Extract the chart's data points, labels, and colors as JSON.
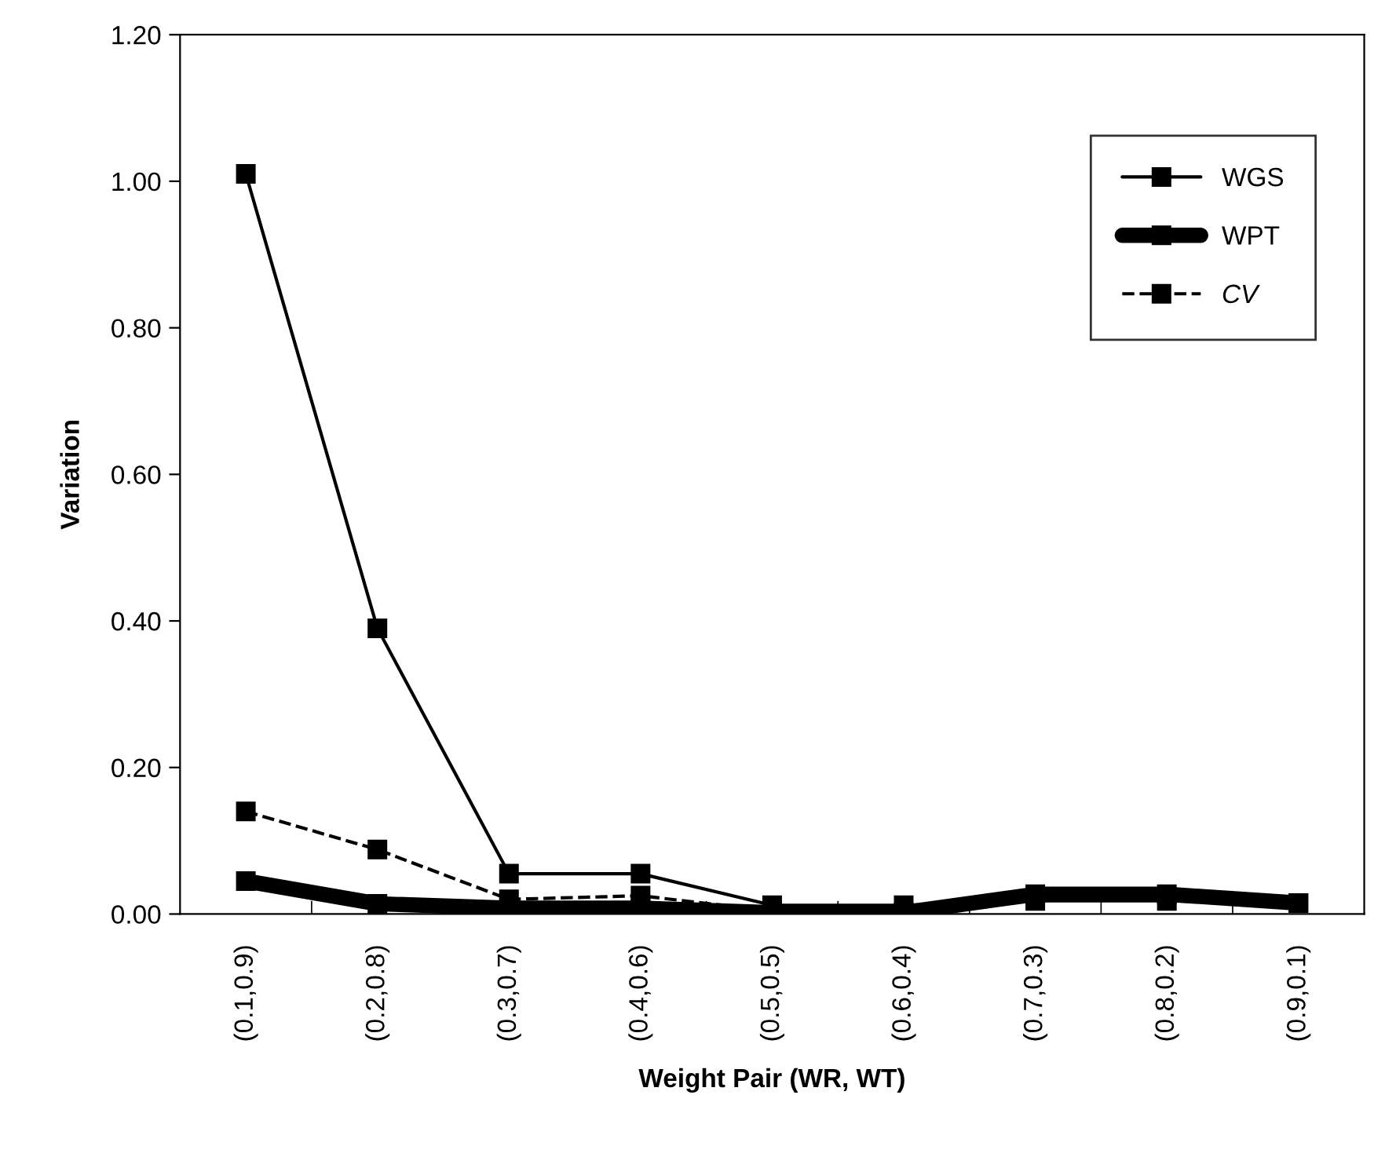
{
  "chart_data": {
    "type": "line",
    "xlabel": "Weight Pair (WR, WT)",
    "ylabel": "Variation",
    "categories": [
      "(0.1,0.9)",
      "(0.2,0.8)",
      "(0.3,0.7)",
      "(0.4,0.6)",
      "(0.5,0.5)",
      "(0.6,0.4)",
      "(0.7,0.3)",
      "(0.8,0.2)",
      "(0.9,0.1)"
    ],
    "series": [
      {
        "name": "WGS",
        "color": "#000000",
        "line_style": "solid",
        "values": [
          1.01,
          0.39,
          0.055,
          0.055,
          0.012,
          0.012,
          0.018,
          0.018,
          0.015
        ]
      },
      {
        "name": "WPT",
        "color": "#000000",
        "line_style": "solid",
        "values": [
          0.045,
          0.014,
          0.008,
          0.008,
          0.002,
          0.002,
          0.027,
          0.027,
          0.015
        ]
      },
      {
        "name": "CV",
        "color": "#000000",
        "line_style": "dashed",
        "values": [
          0.14,
          0.088,
          0.02,
          0.025,
          0.004,
          null,
          null,
          null,
          null
        ]
      }
    ],
    "marker": "square",
    "ylim": [
      0,
      1.2
    ],
    "yticks": [
      {
        "value": 0,
        "label": "0.00"
      },
      {
        "value": 0.2,
        "label": "0.20"
      },
      {
        "value": 0.4,
        "label": "0.40"
      },
      {
        "value": 0.6,
        "label": "0.60"
      },
      {
        "value": 0.8,
        "label": "0.80"
      },
      {
        "value": 1.0,
        "label": "1.00"
      },
      {
        "value": 1.2,
        "label": "1.20"
      }
    ],
    "grid": false,
    "legend": "top right"
  }
}
